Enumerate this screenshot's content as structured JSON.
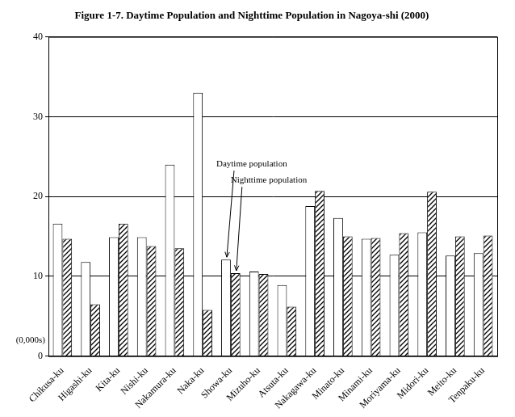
{
  "chart_data": {
    "type": "bar",
    "title": "Figure 1-7. Daytime Population and Nighttime Population in Nagoya-shi (2000)",
    "ylabel": "(0,000s)",
    "categories": [
      "Chikusa-ku",
      "Higashi-ku",
      "Kita-ku",
      "Nishi-ku",
      "Nakamura-ku",
      "Naka-ku",
      "Showa-ku",
      "Mizuho-ku",
      "Atsuta-ku",
      "Nakagawa-ku",
      "Minato-ku",
      "Minami-ku",
      "Moriyama-ku",
      "Midori-ku",
      "Meito-ku",
      "Tenpaku-ku"
    ],
    "series": [
      {
        "name": "Daytime population",
        "color": "#ffffff",
        "values": [
          16.6,
          11.8,
          14.9,
          14.9,
          24.0,
          33.0,
          12.1,
          10.6,
          8.9,
          18.8,
          17.3,
          14.7,
          12.7,
          15.5,
          12.6,
          12.9
        ]
      },
      {
        "name": "Nighttime population",
        "color": "#000000",
        "values": [
          14.7,
          6.5,
          16.6,
          13.8,
          13.5,
          5.8,
          10.4,
          10.3,
          6.2,
          20.7,
          15.0,
          14.8,
          15.4,
          20.6,
          15.0,
          15.1
        ]
      }
    ],
    "ylim": [
      0,
      40
    ],
    "yticks": [
      0,
      10,
      20,
      30,
      40
    ],
    "grid": true
  }
}
